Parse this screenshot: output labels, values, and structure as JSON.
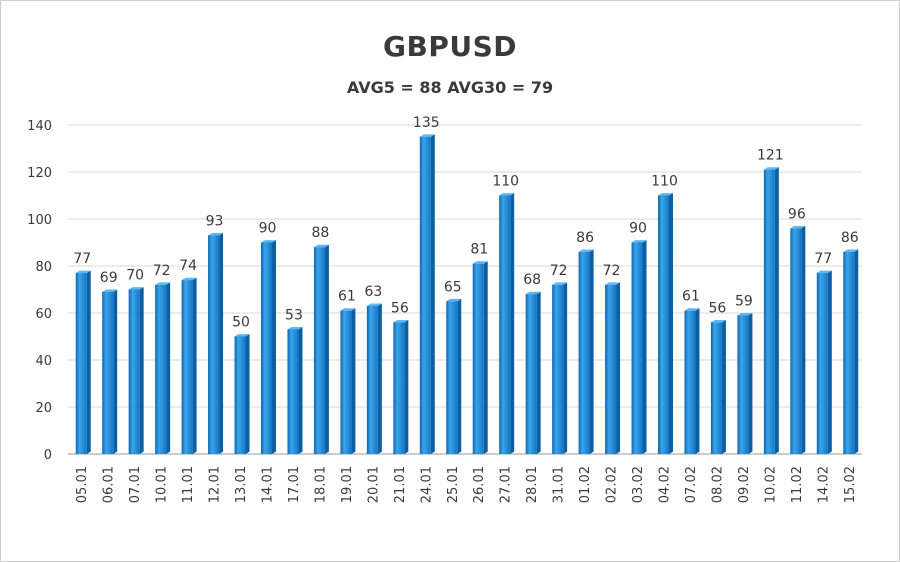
{
  "chart_data": {
    "type": "bar",
    "title": "GBPUSD",
    "subtitle": "AVG5 = 88 AVG30 = 79",
    "xlabel": "",
    "ylabel": "",
    "categories": [
      "05.01",
      "06.01",
      "07.01",
      "10.01",
      "11.01",
      "12.01",
      "13.01",
      "14.01",
      "17.01",
      "18.01",
      "19.01",
      "20.01",
      "21.01",
      "24.01",
      "25.01",
      "26.01",
      "27.01",
      "28.01",
      "31.01",
      "01.02",
      "02.02",
      "03.02",
      "04.02",
      "07.02",
      "08.02",
      "09.02",
      "10.02",
      "11.02",
      "14.02",
      "15.02"
    ],
    "values": [
      77,
      69,
      70,
      72,
      74,
      93,
      50,
      90,
      53,
      88,
      61,
      63,
      56,
      135,
      65,
      81,
      110,
      68,
      72,
      86,
      72,
      90,
      110,
      61,
      56,
      59,
      121,
      96,
      77,
      86
    ],
    "ylim": [
      0,
      140
    ],
    "yticks": [
      0,
      20,
      40,
      60,
      80,
      100,
      120,
      140
    ],
    "grid": true,
    "legend": "none",
    "bar_color": "#1f8ad6",
    "bar_dark": "#0d5fa5",
    "bar_light": "#5fb6ee"
  }
}
